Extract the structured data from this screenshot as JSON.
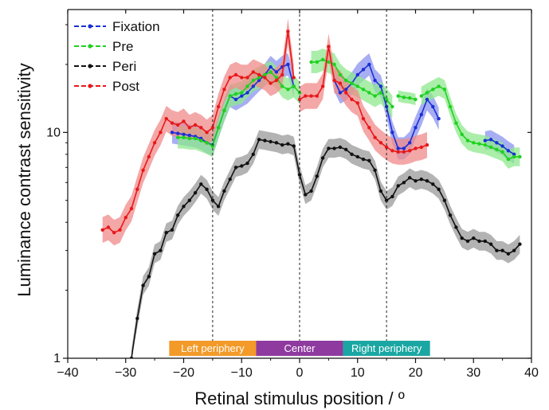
{
  "chart_data": {
    "type": "line",
    "xlabel": "Retinal stimulus position / º",
    "ylabel": "Luminance contrast sensitivity",
    "xlim": [
      -40,
      40
    ],
    "ylim": [
      1,
      35
    ],
    "yscale": "log",
    "x_ticks": [
      -40,
      -30,
      -20,
      -10,
      0,
      10,
      20,
      30,
      40
    ],
    "x_tick_labels": [
      "−40",
      "−30",
      "−20",
      "−10",
      "0",
      "10",
      "20",
      "30",
      "40"
    ],
    "y_ticks": [
      1,
      10
    ],
    "y_tick_labels": [
      "1",
      "10"
    ],
    "vlines": [
      -15,
      0,
      15
    ],
    "legend_position": "top-left",
    "regions": [
      {
        "label": "Left periphery",
        "x0": -22.5,
        "x1": -7.5,
        "color": "#f39a28"
      },
      {
        "label": "Center",
        "x0": -7.5,
        "x1": 7.5,
        "color": "#8e3a9e"
      },
      {
        "label": "Right periphery",
        "x0": 7.5,
        "x1": 22.5,
        "color": "#1aa7a3"
      }
    ],
    "series": [
      {
        "name": "Fixation",
        "color": "#1a2fd6",
        "band_color": "#8b93ee",
        "segments": [
          {
            "x": [
              -22,
              -21,
              -20,
              -19,
              -18,
              -17,
              -16,
              -15,
              -14,
              -13,
              -12,
              -11,
              -10,
              -9,
              -8,
              -7,
              -6,
              -5,
              -4,
              -3,
              -2,
              -1
            ],
            "y": [
              10.0,
              9.9,
              9.8,
              9.7,
              9.6,
              9.4,
              9.0,
              8.8,
              10.5,
              12.5,
              14.5,
              14.0,
              14.5,
              15.0,
              16.0,
              17.0,
              18.0,
              19.5,
              18.5,
              19.5,
              20.0,
              16.0
            ],
            "band": 0.12
          },
          {
            "x": [
              6,
              7,
              8,
              9,
              10,
              11,
              12,
              13,
              14,
              15,
              16,
              17,
              18,
              19,
              20,
              21,
              22,
              23,
              24
            ],
            "y": [
              17.0,
              15.0,
              15.5,
              16.5,
              18.0,
              19.0,
              20.0,
              17.0,
              16.0,
              13.0,
              10.0,
              8.5,
              8.5,
              9.0,
              10.5,
              12.0,
              14.0,
              13.0,
              11.5
            ],
            "band": 0.12
          },
          {
            "x": [
              32,
              33,
              34,
              35,
              36,
              37
            ],
            "y": [
              9.2,
              9.3,
              9.0,
              8.7,
              8.3,
              8.0
            ],
            "band": 0.1
          }
        ]
      },
      {
        "name": "Pre",
        "color": "#1fd11f",
        "band_color": "#8ee88e",
        "segments": [
          {
            "x": [
              -21,
              -20,
              -19,
              -18,
              -17,
              -16,
              -15,
              -14,
              -13,
              -12,
              -11,
              -10,
              -9,
              -8,
              -7,
              -6,
              -5,
              -4,
              -3,
              -2,
              -1,
              0
            ],
            "y": [
              9.5,
              9.5,
              9.4,
              9.4,
              9.2,
              9.0,
              8.7,
              10.5,
              12.5,
              14.5,
              14.8,
              15.0,
              16.0,
              17.0,
              17.5,
              18.0,
              18.5,
              17.5,
              16.0,
              15.5,
              16.0,
              15.0
            ],
            "band": 0.12
          },
          {
            "x": [
              2,
              3,
              4,
              5,
              6,
              7,
              8,
              9,
              10,
              11,
              12,
              13,
              14,
              15,
              16
            ],
            "y": [
              20.5,
              20.5,
              21.0,
              20.5,
              20.0,
              18.0,
              17.0,
              16.5,
              16.0,
              15.5,
              15.0,
              14.5,
              15.0,
              14.0,
              13.0
            ],
            "band": 0.12
          },
          {
            "x": [
              17,
              18,
              19,
              20
            ],
            "y": [
              14.5,
              14.3,
              14.2,
              14.0
            ],
            "band": 0.06
          },
          {
            "x": [
              21,
              22,
              23,
              24,
              25,
              26,
              27,
              28,
              29,
              30,
              31,
              32,
              33,
              34,
              35,
              36,
              37,
              38
            ],
            "y": [
              14.5,
              15.0,
              15.5,
              16.0,
              15.5,
              13.0,
              11.0,
              9.8,
              9.2,
              9.0,
              8.9,
              8.8,
              8.6,
              8.4,
              8.2,
              7.6,
              7.8,
              7.8
            ],
            "band": 0.1
          }
        ]
      },
      {
        "name": "Peri",
        "color": "#111111",
        "band_color": "#9a9a9a",
        "segments": [
          {
            "x": [
              -29,
              -28,
              -27,
              -26,
              -25,
              -24,
              -23,
              -22,
              -21,
              -20,
              -19,
              -18,
              -17,
              -16,
              -15,
              -14,
              -13,
              -12,
              -11,
              -10,
              -9,
              -8,
              -7,
              -6,
              -5,
              -4,
              -3,
              -2,
              -1,
              0,
              1,
              2,
              3,
              4,
              5,
              6,
              7,
              8,
              9,
              10,
              11,
              12,
              13,
              14,
              15,
              16,
              17,
              18,
              19,
              20,
              21,
              22,
              23,
              24,
              25,
              26,
              27,
              28,
              29,
              30,
              31,
              32,
              33,
              34,
              35,
              36,
              37,
              38
            ],
            "y": [
              1.0,
              1.5,
              2.1,
              2.3,
              2.9,
              3.0,
              3.6,
              3.7,
              4.3,
              4.7,
              5.0,
              5.4,
              5.9,
              5.6,
              5.0,
              4.7,
              5.5,
              6.2,
              7.0,
              7.1,
              7.3,
              8.0,
              9.3,
              9.2,
              9.1,
              9.0,
              8.8,
              8.9,
              8.7,
              6.5,
              5.3,
              5.5,
              6.4,
              7.7,
              8.5,
              8.5,
              8.6,
              8.4,
              8.0,
              7.8,
              7.6,
              7.5,
              6.8,
              5.5,
              5.0,
              5.2,
              5.8,
              6.0,
              6.3,
              6.1,
              6.2,
              6.1,
              5.9,
              5.6,
              5.0,
              4.3,
              3.8,
              3.4,
              3.3,
              3.4,
              3.3,
              3.3,
              3.2,
              3.0,
              3.0,
              2.9,
              3.0,
              3.2
            ],
            "band": 0.1
          }
        ]
      },
      {
        "name": "Post",
        "color": "#e8181a",
        "band_color": "#f08a8a",
        "segments": [
          {
            "x": [
              -34,
              -33,
              -32,
              -31,
              -30,
              -29,
              -28,
              -27,
              -26,
              -25,
              -24,
              -23,
              -22,
              -21,
              -20,
              -19,
              -18,
              -17,
              -16,
              -15,
              -14,
              -13,
              -12,
              -11,
              -10,
              -9,
              -8,
              -7,
              -6,
              -5,
              -4,
              -3,
              -2,
              -1
            ],
            "y": [
              3.7,
              3.8,
              3.6,
              3.7,
              4.2,
              4.6,
              5.6,
              6.8,
              7.8,
              9.0,
              10.0,
              11.5,
              11.0,
              10.8,
              11.2,
              10.5,
              10.8,
              10.5,
              10.0,
              10.5,
              13.0,
              15.5,
              17.5,
              18.0,
              17.5,
              17.5,
              18.5,
              18.0,
              17.5,
              16.5,
              17.0,
              18.0,
              28.0,
              17.5
            ],
            "band": 0.14
          },
          {
            "x": [
              0,
              1,
              2,
              3,
              4,
              5,
              6,
              7,
              8,
              9,
              10,
              11,
              12,
              13,
              14,
              15,
              16,
              17,
              18,
              19,
              20,
              21,
              22
            ],
            "y": [
              14.0,
              14.5,
              14.5,
              14.5,
              16.0,
              24.0,
              17.0,
              16.5,
              15.0,
              14.0,
              13.5,
              11.5,
              10.5,
              9.5,
              9.0,
              8.6,
              8.3,
              8.2,
              8.2,
              8.3,
              8.5,
              8.6,
              8.8
            ],
            "band": 0.14
          }
        ]
      }
    ]
  }
}
